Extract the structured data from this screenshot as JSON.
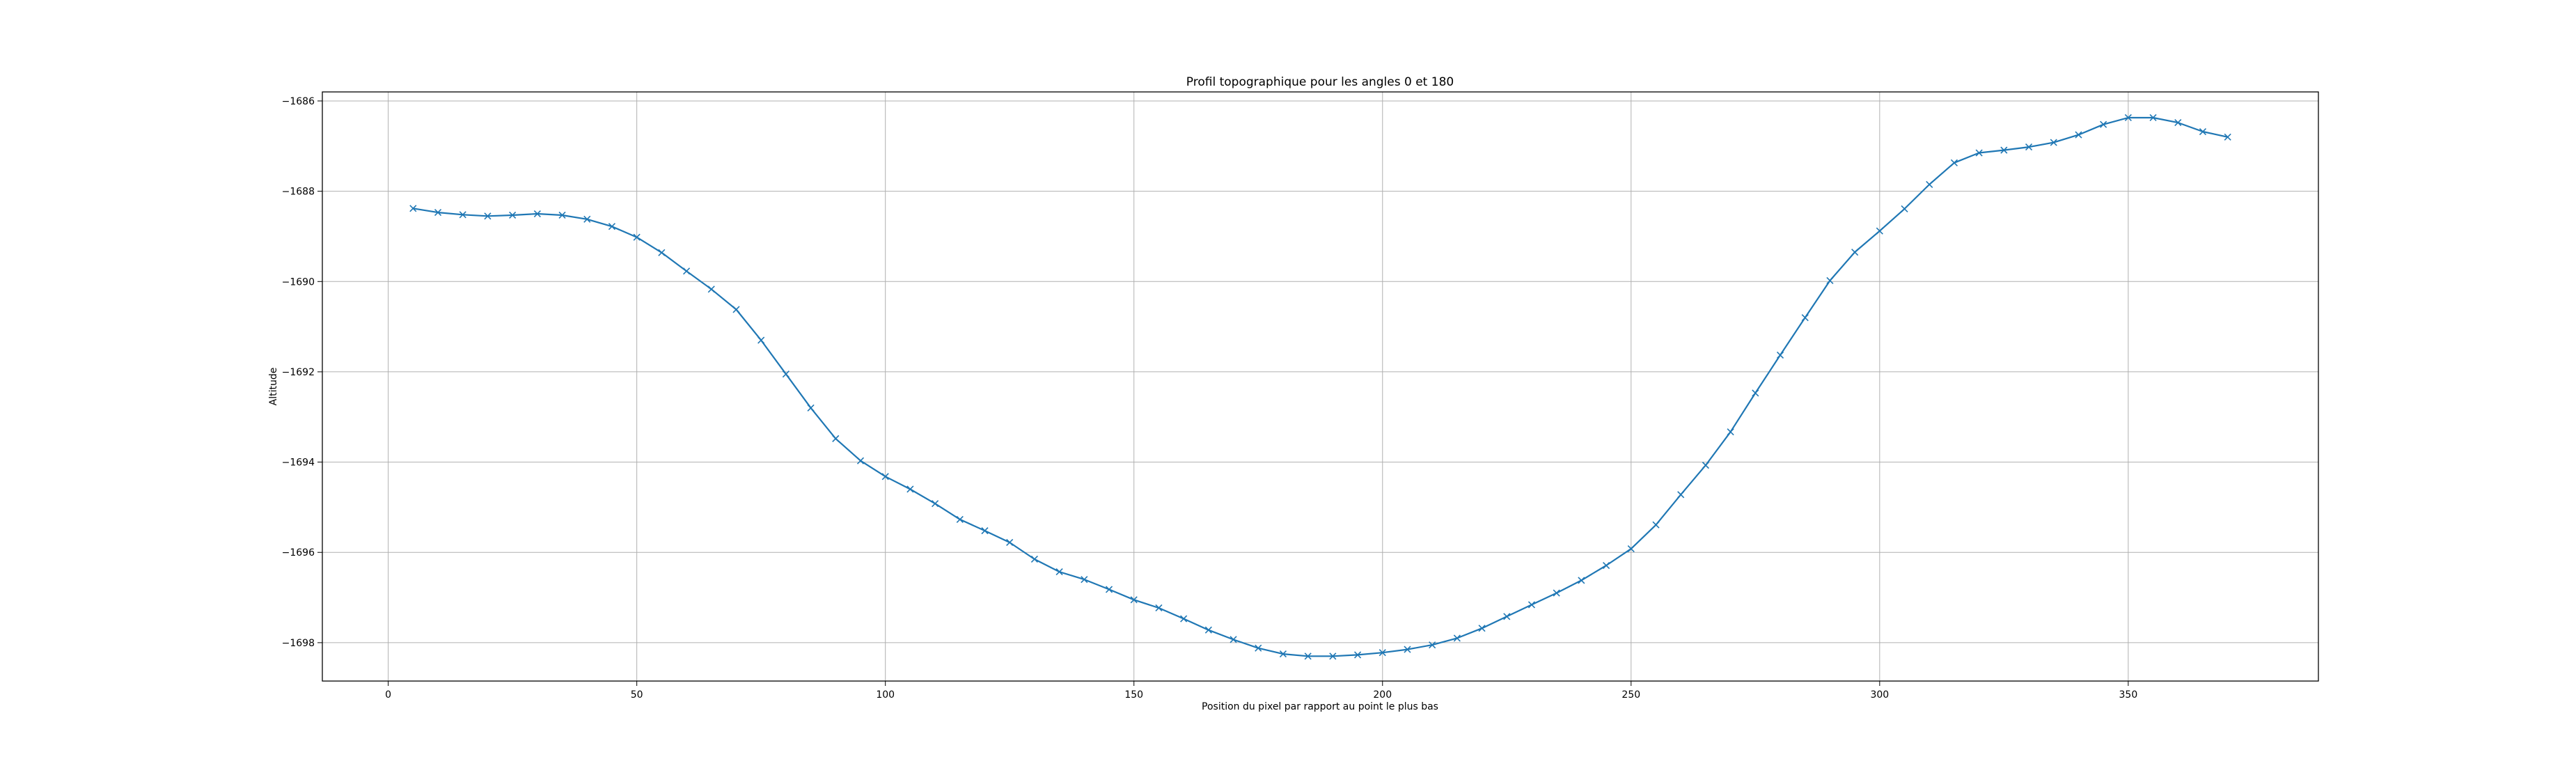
{
  "chart_data": {
    "type": "line",
    "title": "Profil topographique pour les angles 0 et 180",
    "xlabel": "Position du pixel par rapport au point le plus bas",
    "ylabel": "Altitude",
    "xlim": [
      -13.25,
      388.25
    ],
    "ylim": [
      -1698.85,
      -1685.8
    ],
    "xticks": [
      0,
      50,
      100,
      150,
      200,
      250,
      300,
      350
    ],
    "yticks": [
      -1698,
      -1696,
      -1694,
      -1692,
      -1690,
      -1688,
      -1686
    ],
    "xtick_labels": [
      "0",
      "50",
      "100",
      "150",
      "200",
      "250",
      "300",
      "350"
    ],
    "ytick_labels": [
      "−1698",
      "−1696",
      "−1694",
      "−1692",
      "−1690",
      "−1688",
      "−1686"
    ],
    "grid": true,
    "color": "#1f77b4",
    "marker": "x",
    "series": [
      {
        "x": [
          5,
          10,
          15,
          20,
          25,
          30,
          35,
          40,
          45,
          50,
          55,
          60,
          65,
          70,
          75,
          80,
          85,
          90,
          95,
          100,
          105,
          110,
          115,
          120,
          125,
          130,
          135,
          140,
          145,
          150,
          155,
          160,
          165,
          170,
          175,
          180,
          185,
          190,
          195,
          200,
          205,
          210,
          215,
          220,
          225,
          230,
          235,
          240,
          245,
          250,
          255,
          260,
          265,
          270,
          275,
          280,
          285,
          290,
          295,
          300,
          305,
          310,
          315,
          320,
          325,
          330,
          335,
          340,
          345,
          350,
          355,
          360,
          365,
          370
        ],
        "y": [
          -1688.38,
          -1688.47,
          -1688.52,
          -1688.55,
          -1688.53,
          -1688.5,
          -1688.53,
          -1688.62,
          -1688.78,
          -1689.02,
          -1689.36,
          -1689.77,
          -1690.17,
          -1690.62,
          -1691.3,
          -1692.05,
          -1692.8,
          -1693.48,
          -1693.97,
          -1694.32,
          -1694.6,
          -1694.92,
          -1695.27,
          -1695.52,
          -1695.78,
          -1696.15,
          -1696.43,
          -1696.6,
          -1696.82,
          -1697.05,
          -1697.23,
          -1697.47,
          -1697.72,
          -1697.93,
          -1698.12,
          -1698.25,
          -1698.3,
          -1698.3,
          -1698.27,
          -1698.22,
          -1698.15,
          -1698.05,
          -1697.9,
          -1697.68,
          -1697.42,
          -1697.16,
          -1696.9,
          -1696.62,
          -1696.29,
          -1695.92,
          -1695.39,
          -1694.72,
          -1694.07,
          -1693.33,
          -1692.47,
          -1691.63,
          -1690.8,
          -1689.98,
          -1689.35,
          -1688.88,
          -1688.39,
          -1687.85,
          -1687.37,
          -1687.15,
          -1687.09,
          -1687.02,
          -1686.92,
          -1686.75,
          -1686.52,
          -1686.37,
          -1686.37,
          -1686.48,
          -1686.68,
          -1686.8
        ]
      }
    ]
  }
}
